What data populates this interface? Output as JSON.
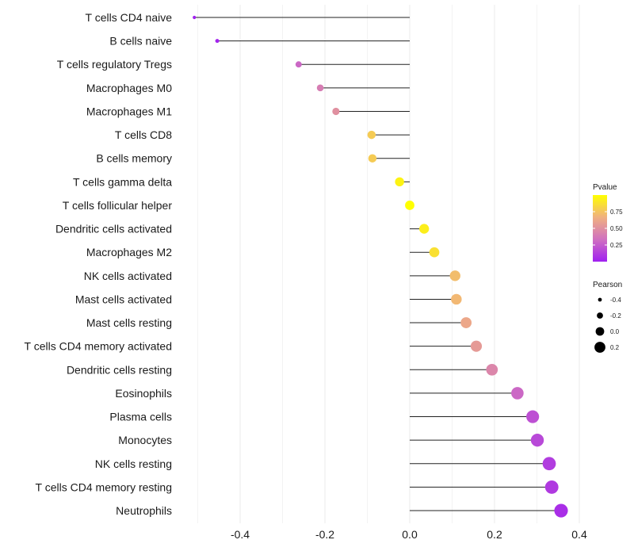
{
  "chart_data": {
    "type": "lollipop",
    "title": "",
    "xlabel": "",
    "ylabel": "",
    "xlim": [
      -0.52,
      0.42
    ],
    "xticks": [
      -0.4,
      -0.2,
      0.0,
      0.2,
      0.4
    ],
    "xtick_labels": [
      "-0.4",
      "-0.2",
      "0.0",
      "0.2",
      "0.4"
    ],
    "grid": true,
    "categories": [
      "T cells CD4 naive",
      "B cells naive",
      "T cells regulatory  Tregs ",
      "Macrophages M0",
      "Macrophages M1",
      "T cells CD8",
      "B cells memory",
      "T cells gamma delta",
      "T cells follicular helper",
      "Dendritic cells activated",
      "Macrophages M2",
      "NK cells activated",
      "Mast cells activated",
      "Mast cells resting",
      "T cells CD4 memory activated",
      "Dendritic cells resting",
      "Eosinophils",
      "Plasma cells",
      "Monocytes",
      "NK cells resting",
      "T cells CD4 memory resting",
      "Neutrophils"
    ],
    "pearson": [
      -0.508,
      -0.454,
      -0.262,
      -0.211,
      -0.174,
      -0.09,
      -0.088,
      -0.024,
      0.0,
      0.034,
      0.058,
      0.107,
      0.11,
      0.133,
      0.157,
      0.194,
      0.254,
      0.29,
      0.301,
      0.329,
      0.335,
      0.357
    ],
    "pvalue": [
      0.01,
      0.02,
      0.3,
      0.4,
      0.5,
      0.78,
      0.78,
      0.95,
      1.0,
      0.93,
      0.87,
      0.72,
      0.7,
      0.62,
      0.55,
      0.45,
      0.3,
      0.2,
      0.17,
      0.12,
      0.11,
      0.06
    ],
    "legend": {
      "color": {
        "title": "Pvalue",
        "ticks": [
          0.25,
          0.5,
          0.75
        ],
        "tick_labels": [
          "0.25",
          "0.50",
          "0.75"
        ],
        "range": [
          0.0,
          1.0
        ],
        "colors": [
          "#a020f0",
          "#d070c0",
          "#f0b080",
          "#ffff00"
        ]
      },
      "size": {
        "title": "Pearson",
        "values": [
          -0.4,
          -0.2,
          0.0,
          0.2
        ],
        "labels": [
          "-0.4",
          "-0.2",
          "0.0",
          "0.2"
        ]
      },
      "placement": "right"
    }
  }
}
